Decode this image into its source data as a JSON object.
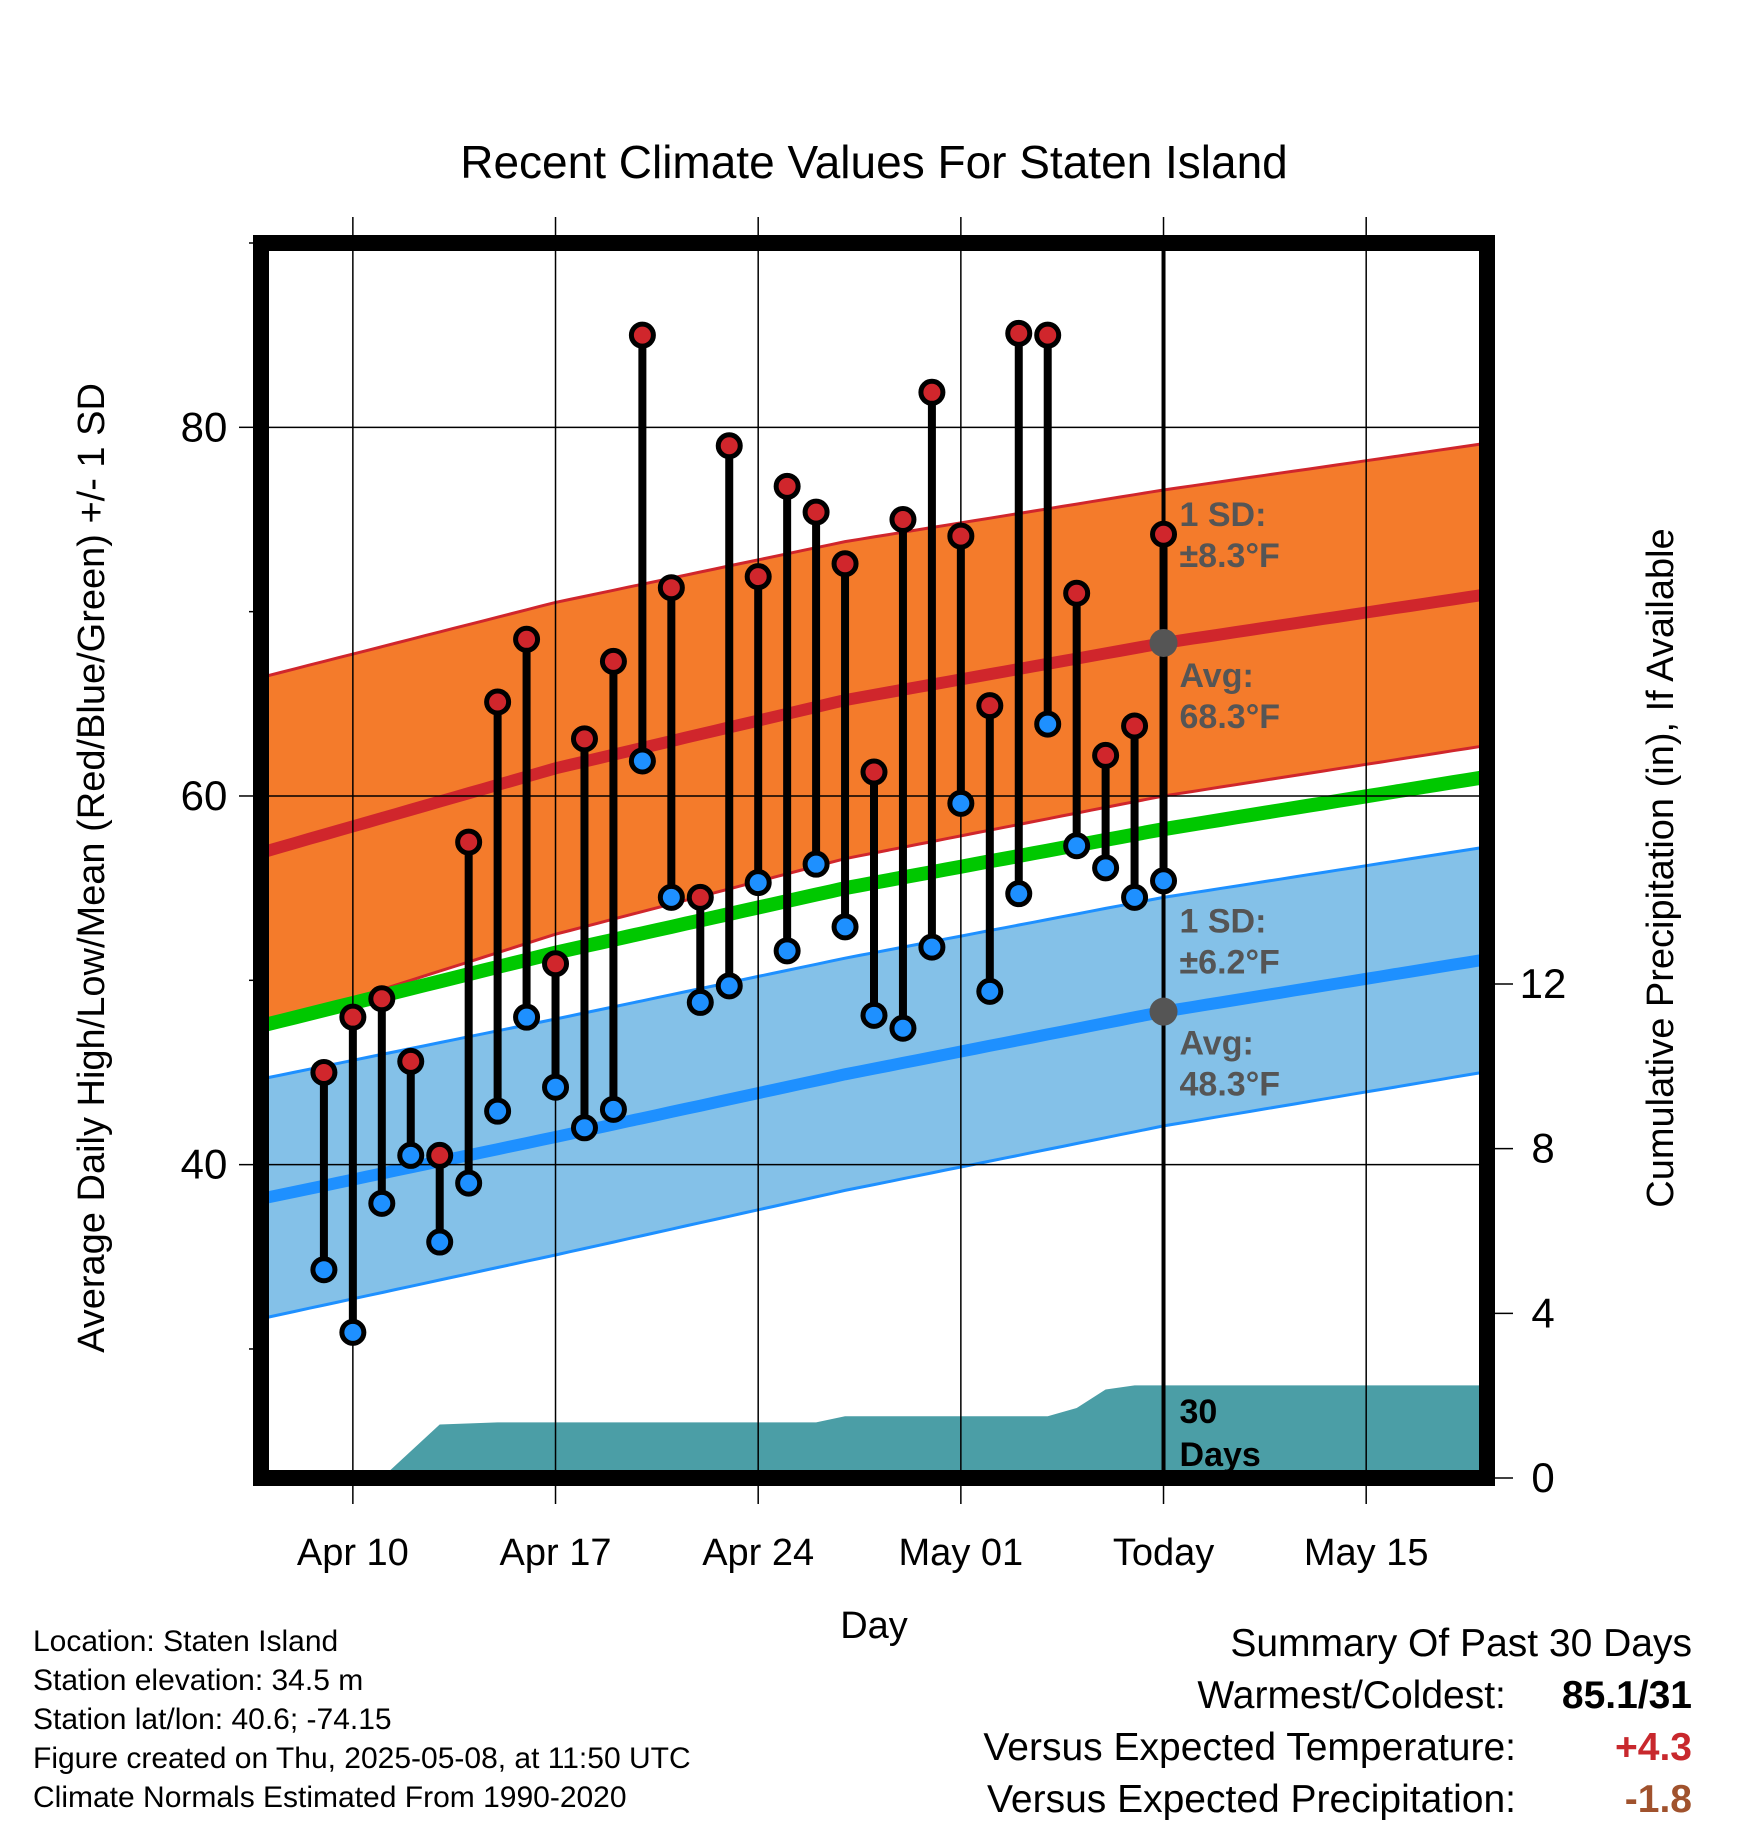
{
  "chart_data": {
    "type": "line",
    "title": "Recent Climate Values For Staten Island",
    "xlabel": "Day",
    "ylabel": "Average Daily High/Low/Mean (Red/Blue/Green) +/- 1 SD",
    "y2label": "Cumulative Precipitation (in), If Available",
    "ylim": [
      23,
      90
    ],
    "y_ticks": [
      40,
      60,
      80
    ],
    "y2lim": [
      0,
      30
    ],
    "y2_ticks": [
      0,
      4,
      8,
      12
    ],
    "x_start": "2025-04-07",
    "x_end": "2025-05-19",
    "x_ticks": [
      {
        "date": "2025-04-10",
        "label": "Apr 10"
      },
      {
        "date": "2025-04-17",
        "label": "Apr 17"
      },
      {
        "date": "2025-04-24",
        "label": "Apr 24"
      },
      {
        "date": "2025-05-01",
        "label": "May 01"
      },
      {
        "date": "2025-05-08",
        "label": "Today"
      },
      {
        "date": "2025-05-15",
        "label": "May 15"
      }
    ],
    "today": "2025-05-08",
    "grid": true,
    "colors": {
      "high": "#d0262c",
      "low": "#1e90ff",
      "mean": "#00c800",
      "high_band": "#f47b2b",
      "low_band": "#84c1e8",
      "precip": "#4b9ea6",
      "marker": "#555555"
    },
    "daily": [
      {
        "date": "2025-04-09",
        "high": 45.0,
        "low": 34.3
      },
      {
        "date": "2025-04-10",
        "high": 48.0,
        "low": 30.9
      },
      {
        "date": "2025-04-11",
        "high": 49.0,
        "low": 37.9
      },
      {
        "date": "2025-04-12",
        "high": 45.6,
        "low": 40.5
      },
      {
        "date": "2025-04-13",
        "high": 40.5,
        "low": 35.8
      },
      {
        "date": "2025-04-14",
        "high": 57.5,
        "low": 39.0
      },
      {
        "date": "2025-04-15",
        "high": 65.1,
        "low": 42.9
      },
      {
        "date": "2025-04-16",
        "high": 68.5,
        "low": 48.0
      },
      {
        "date": "2025-04-17",
        "high": 50.9,
        "low": 44.2
      },
      {
        "date": "2025-04-18",
        "high": 63.1,
        "low": 42.0
      },
      {
        "date": "2025-04-19",
        "high": 67.3,
        "low": 43.0
      },
      {
        "date": "2025-04-20",
        "high": 85.0,
        "low": 61.9
      },
      {
        "date": "2025-04-21",
        "high": 71.3,
        "low": 54.5
      },
      {
        "date": "2025-04-22",
        "high": 54.5,
        "low": 48.8
      },
      {
        "date": "2025-04-23",
        "high": 79.0,
        "low": 49.7
      },
      {
        "date": "2025-04-24",
        "high": 71.9,
        "low": 55.3
      },
      {
        "date": "2025-04-25",
        "high": 76.8,
        "low": 51.6
      },
      {
        "date": "2025-04-26",
        "high": 75.4,
        "low": 56.3
      },
      {
        "date": "2025-04-27",
        "high": 72.6,
        "low": 52.9
      },
      {
        "date": "2025-04-28",
        "high": 61.3,
        "low": 48.1
      },
      {
        "date": "2025-04-29",
        "high": 75.0,
        "low": 47.4
      },
      {
        "date": "2025-04-30",
        "high": 81.9,
        "low": 51.8
      },
      {
        "date": "2025-05-01",
        "high": 74.1,
        "low": 59.6
      },
      {
        "date": "2025-05-02",
        "high": 64.9,
        "low": 49.4
      },
      {
        "date": "2025-05-03",
        "high": 85.1,
        "low": 54.7
      },
      {
        "date": "2025-05-04",
        "high": 85.0,
        "low": 63.9
      },
      {
        "date": "2025-05-05",
        "high": 71.0,
        "low": 57.3
      },
      {
        "date": "2025-05-06",
        "high": 62.2,
        "low": 56.1
      },
      {
        "date": "2025-05-07",
        "high": 63.8,
        "low": 54.5
      },
      {
        "date": "2025-05-08",
        "high": 74.2,
        "low": 55.4
      }
    ],
    "normals": [
      {
        "date": "2025-04-07",
        "high": 57.0,
        "low": 38.2,
        "mean": 47.6,
        "high_sd": 9.5,
        "low_sd": 6.5
      },
      {
        "date": "2025-04-17",
        "high": 61.5,
        "low": 41.5,
        "mean": 51.5,
        "high_sd": 9.0,
        "low_sd": 6.4
      },
      {
        "date": "2025-04-27",
        "high": 65.2,
        "low": 44.9,
        "mean": 55.0,
        "high_sd": 8.6,
        "low_sd": 6.3
      },
      {
        "date": "2025-05-08",
        "high": 68.3,
        "low": 48.3,
        "mean": 58.2,
        "high_sd": 8.3,
        "low_sd": 6.2
      },
      {
        "date": "2025-05-19",
        "high": 70.9,
        "low": 51.1,
        "mean": 61.0,
        "high_sd": 8.2,
        "low_sd": 6.1
      }
    ],
    "precip_cumulative": [
      {
        "date": "2025-04-10",
        "value": 0
      },
      {
        "date": "2025-04-11",
        "value": 0
      },
      {
        "date": "2025-04-13",
        "value": 1.3
      },
      {
        "date": "2025-04-15",
        "value": 1.35
      },
      {
        "date": "2025-04-26",
        "value": 1.35
      },
      {
        "date": "2025-04-27",
        "value": 1.5
      },
      {
        "date": "2025-05-04",
        "value": 1.5
      },
      {
        "date": "2025-05-05",
        "value": 1.7
      },
      {
        "date": "2025-05-06",
        "value": 2.15
      },
      {
        "date": "2025-05-07",
        "value": 2.25
      },
      {
        "date": "2025-05-19",
        "value": 2.25
      }
    ],
    "annotations": {
      "high_sd_label": "1 SD:",
      "high_sd_value": "±8.3°F",
      "high_avg_label": "Avg:",
      "high_avg_value": "68.3°F",
      "low_sd_label": "1 SD:",
      "low_sd_value": "±6.2°F",
      "low_avg_label": "Avg:",
      "low_avg_value": "48.3°F",
      "precip_days_line1": "30",
      "precip_days_line2": "Days"
    }
  },
  "footer": {
    "location": "Location: Staten Island",
    "elevation": "Station elevation: 34.5 m",
    "latlon": "Station lat/lon: 40.6; -74.15",
    "created": "Figure created on Thu, 2025-05-08, at 11:50 UTC",
    "normals": "Climate Normals Estimated From 1990-2020"
  },
  "summary": {
    "title": "Summary Of Past 30 Days",
    "warmest_coldest_label": "Warmest/Coldest:",
    "warmest_coldest_value": "85.1/31",
    "temp_label": "Versus Expected Temperature:",
    "temp_value": "+4.3",
    "temp_color": "#c8282d",
    "precip_label": "Versus Expected Precipitation:",
    "precip_value": "-1.8",
    "precip_color": "#a0522d"
  }
}
